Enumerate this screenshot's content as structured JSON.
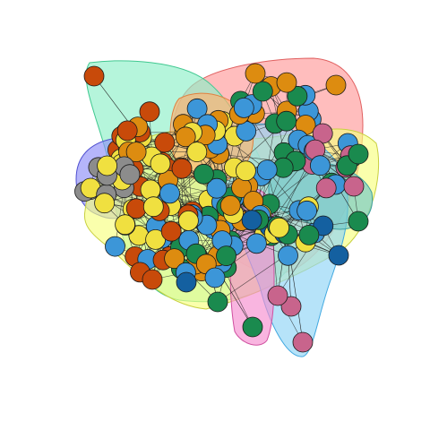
{
  "diagram": {
    "type": "network graph with community hulls",
    "communities": [
      {
        "name": "red",
        "fill": "#ff9a9a",
        "stroke": "#e06060"
      },
      {
        "name": "teal",
        "fill": "#8ef0c8",
        "stroke": "#40c890"
      },
      {
        "name": "violet",
        "fill": "#8e8ef8",
        "stroke": "#5050d0"
      },
      {
        "name": "yellow",
        "fill": "#f8ff80",
        "stroke": "#c8d040"
      },
      {
        "name": "lightblue",
        "fill": "#8fd4f6",
        "stroke": "#40a8e0"
      },
      {
        "name": "pink",
        "fill": "#f68ed0",
        "stroke": "#d050a0"
      },
      {
        "name": "orange",
        "fill": "#ffb070",
        "stroke": "#e08040"
      },
      {
        "name": "sea",
        "fill": "#70c8c8",
        "stroke": "#40a0a0"
      }
    ],
    "node_colors": {
      "rust": "#c84a0a",
      "orange": "#dd8c10",
      "gold": "#f0e040",
      "gray": "#8c8c8c",
      "skyblue": "#3c96d8",
      "navy": "#1460a0",
      "green": "#1a8a4e",
      "rose": "#c8648c"
    }
  }
}
